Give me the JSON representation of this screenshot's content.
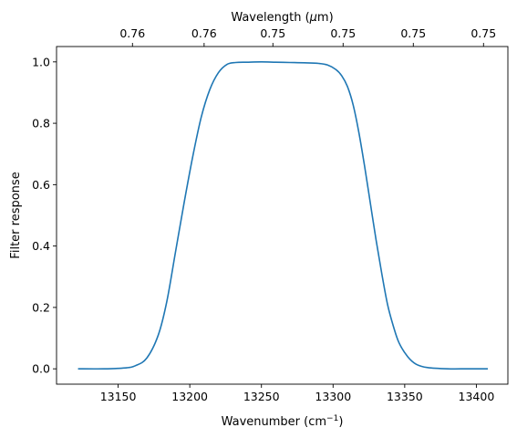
{
  "chart_data": {
    "type": "line",
    "xlabel": "Wavenumber (cm",
    "xlabel_sup": "−1",
    "xlabel_close": ")",
    "ylabel": "Filter response",
    "top_xlabel": "Wavelength (",
    "top_xlabel_mu": "μ",
    "top_xlabel_unit": "m)",
    "xlim": [
      13107,
      13422
    ],
    "ylim": [
      -0.05,
      1.05
    ],
    "xticks": [
      13150,
      13200,
      13250,
      13300,
      13350,
      13400
    ],
    "yticks": [
      0.0,
      0.2,
      0.4,
      0.6,
      0.8,
      1.0
    ],
    "xtick_labels": [
      "13150",
      "13200",
      "13250",
      "13300",
      "13350",
      "13400"
    ],
    "ytick_labels": [
      "0.0",
      "0.2",
      "0.4",
      "0.6",
      "0.8",
      "1.0"
    ],
    "top_ticks": [
      13160,
      13210,
      13258,
      13307,
      13356,
      13405
    ],
    "top_tick_labels": [
      "0.76",
      "0.76",
      "0.75",
      "0.75",
      "0.75",
      "0.75"
    ],
    "grid": false,
    "line_color": "#1f77b4",
    "series": [
      {
        "x": [
          13122,
          13140,
          13155,
          13162,
          13170,
          13178,
          13184,
          13190,
          13196,
          13202,
          13208,
          13214,
          13220,
          13226,
          13232,
          13240,
          13250,
          13260,
          13270,
          13280,
          13290,
          13296,
          13302,
          13306,
          13310,
          13314,
          13318,
          13322,
          13326,
          13330,
          13334,
          13338,
          13342,
          13346,
          13352,
          13358,
          13366,
          13380,
          13394,
          13408
        ],
        "y": [
          0.0,
          0.0,
          0.003,
          0.01,
          0.035,
          0.11,
          0.22,
          0.38,
          0.54,
          0.69,
          0.82,
          0.91,
          0.965,
          0.992,
          0.998,
          0.999,
          1.0,
          0.999,
          0.998,
          0.997,
          0.995,
          0.99,
          0.975,
          0.955,
          0.92,
          0.86,
          0.77,
          0.66,
          0.54,
          0.42,
          0.31,
          0.21,
          0.14,
          0.085,
          0.04,
          0.015,
          0.004,
          0.0,
          0.0,
          0.0
        ]
      }
    ]
  }
}
